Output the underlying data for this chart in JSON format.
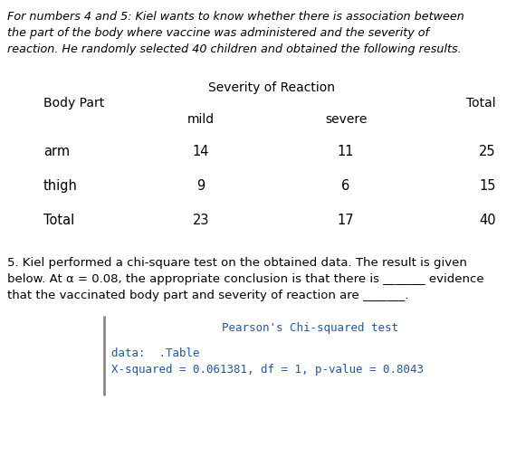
{
  "intro_text": "For numbers 4 and 5: Kiel wants to know whether there is association between\nthe part of the body where vaccine was administered and the severity of\nreaction. He randomly selected 40 children and obtained the following results.",
  "severity_header": "Severity of Reaction",
  "col_header_left": "Body Part",
  "col_header_total": "Total",
  "sub_headers": [
    "mild",
    "severe"
  ],
  "rows": [
    {
      "label": "arm",
      "mild": "14",
      "severe": "11",
      "total": "25"
    },
    {
      "label": "thigh",
      "mild": "9",
      "severe": "6",
      "total": "15"
    },
    {
      "label": "Total",
      "mild": "23",
      "severe": "17",
      "total": "40"
    }
  ],
  "question_text_1": "5. Kiel performed a chi-square test on the obtained data. The result is given",
  "question_text_2": "below. At α = 0.08, the appropriate conclusion is that there is _______ evidence",
  "question_text_3": "that the vaccinated body part and severity of reaction are _______.",
  "chi_title": "Pearson's Chi-squared test",
  "chi_line1": "data:  .Table",
  "chi_line2": "X-squared = 0.061381, df = 1, p-value = 0.8043",
  "bg_color": "#ffffff",
  "text_color": "#000000",
  "chi_text_color": "#2255aa",
  "border_color": "#888888"
}
